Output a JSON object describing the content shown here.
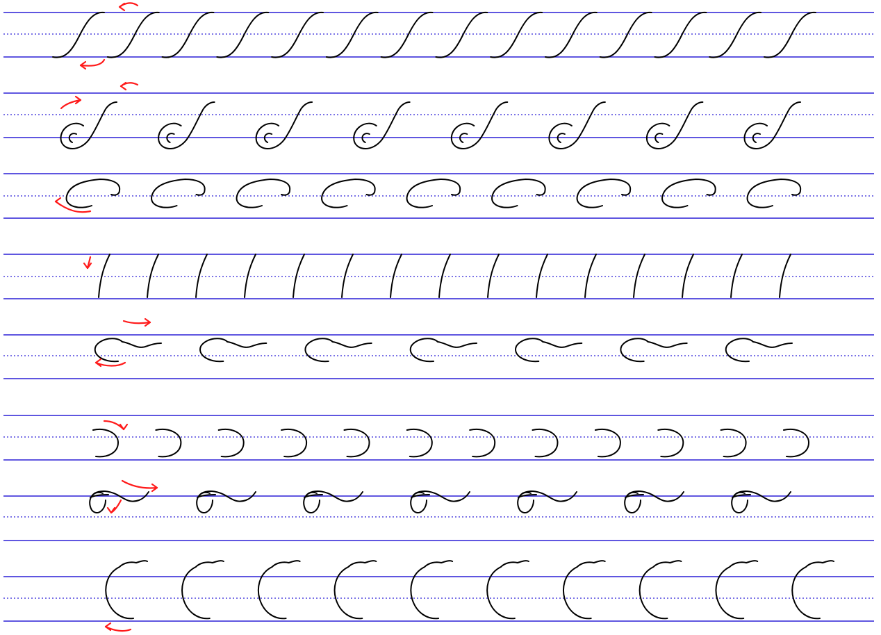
{
  "sheet": {
    "kind": "calligraphy stroke practice worksheet",
    "colors": {
      "guide_line": "#2a1fd6",
      "stroke": "#000000",
      "direction_arrow": "#ff1a1a",
      "background": "#ffffff"
    }
  },
  "exercises": [
    {
      "id": "s-curve",
      "repetitions": 14,
      "direction_arrows": 2
    },
    {
      "id": "loop-s-curve",
      "repetitions": 8,
      "direction_arrows": 2
    },
    {
      "id": "oval-curl",
      "repetitions": 9,
      "direction_arrows": 1
    },
    {
      "id": "slant-stroke",
      "repetitions": 15,
      "direction_arrows": 1
    },
    {
      "id": "c-tilde",
      "repetitions": 7,
      "direction_arrows": 2
    },
    {
      "id": "reverse-curve",
      "repetitions": 12,
      "direction_arrows": 1
    },
    {
      "id": "loop-wave",
      "repetitions": 7,
      "direction_arrows": 2
    },
    {
      "id": "capital-c-curve",
      "repetitions": 10,
      "direction_arrows": 1
    }
  ]
}
